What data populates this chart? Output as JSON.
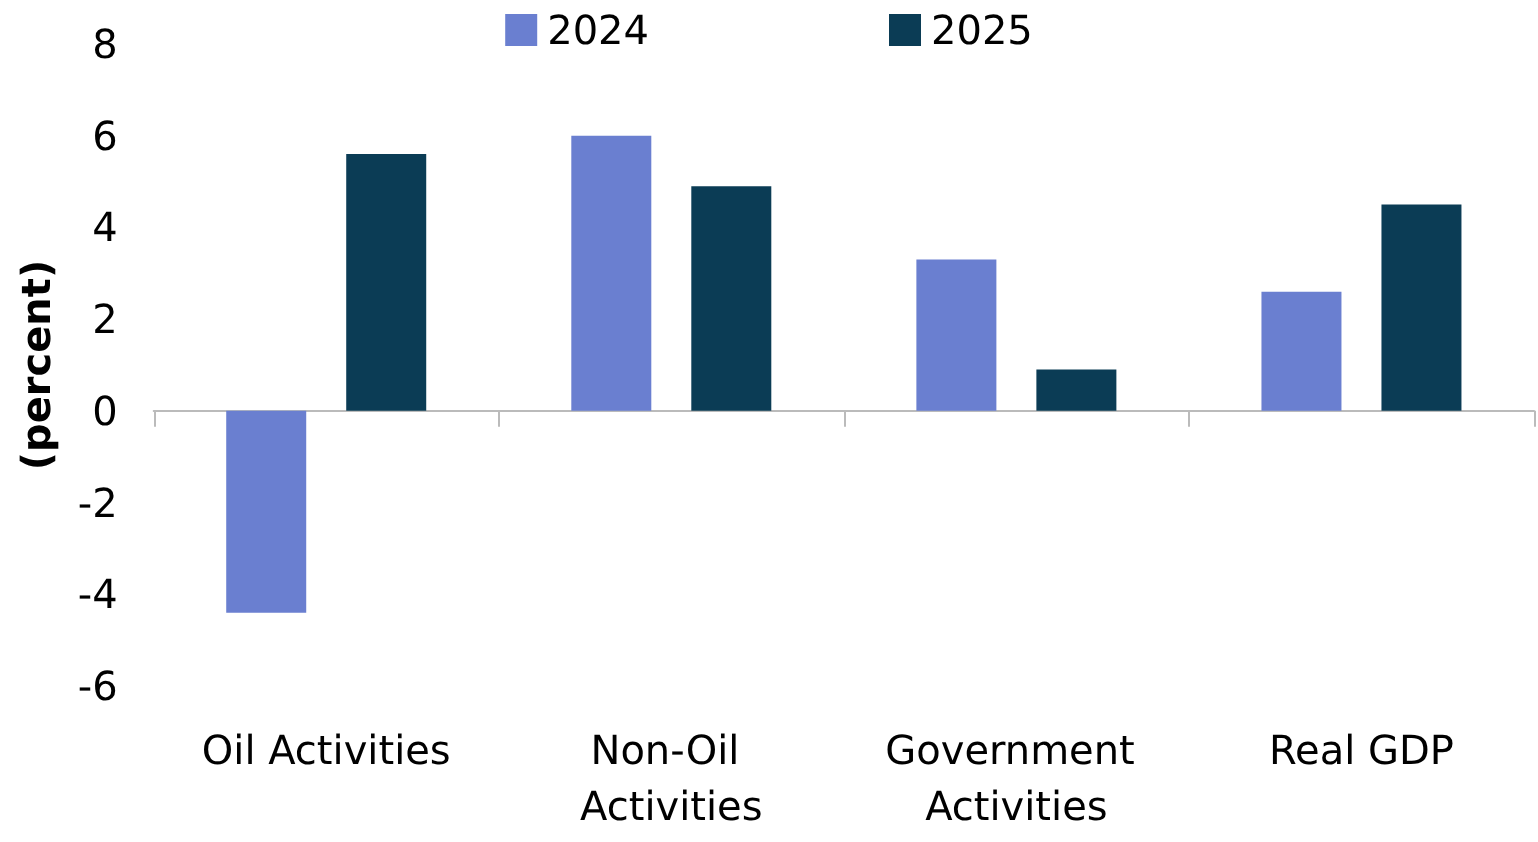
{
  "chart_data": {
    "type": "bar",
    "ylabel": "(percent)",
    "categories": [
      "Oil Activities",
      "Non-Oil Activities",
      "Government Activities",
      "Real GDP"
    ],
    "series": [
      {
        "name": "2024",
        "color": "#6a7fd0",
        "values": [
          -4.4,
          6.0,
          3.3,
          2.6
        ]
      },
      {
        "name": "2025",
        "color": "#0b3c55",
        "values": [
          5.6,
          4.9,
          0.9,
          4.5
        ]
      }
    ],
    "ylim": [
      -6,
      8
    ],
    "yticks": [
      -6,
      -4,
      -2,
      0,
      2,
      4,
      6,
      8
    ],
    "legend": "top"
  }
}
